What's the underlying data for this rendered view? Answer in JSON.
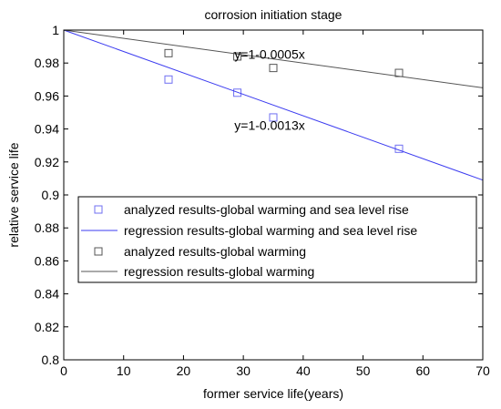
{
  "chart_data": {
    "type": "scatter",
    "title": "corrosion initiation  stage",
    "xlabel": "former service life(years)",
    "ylabel": "relative service life",
    "xlim": [
      0,
      70
    ],
    "ylim": [
      0.8,
      1.0
    ],
    "xticks": [
      "0",
      "10",
      "20",
      "30",
      "40",
      "50",
      "60",
      "70"
    ],
    "yticks": [
      "0.8",
      "0.82",
      "0.84",
      "0.86",
      "0.88",
      "0.9",
      "0.92",
      "0.94",
      "0.96",
      "0.98",
      "1"
    ],
    "grid": false,
    "legend_position": "middle-left",
    "series": [
      {
        "name": "analyzed results-global warming and sea level rise",
        "kind": "points",
        "marker": "square",
        "color": "#6f6ff2",
        "x": [
          17.5,
          29,
          35,
          56
        ],
        "y": [
          0.97,
          0.962,
          0.947,
          0.928
        ]
      },
      {
        "name": "regression results-global warming and sea level rise",
        "kind": "line",
        "color": "#3b3bf0",
        "intercept": 1,
        "slope": -0.0013,
        "x": [
          0,
          70
        ],
        "y": [
          1.0,
          0.909
        ]
      },
      {
        "name": "analyzed results-global warming",
        "kind": "points",
        "marker": "square",
        "color": "#555555",
        "x": [
          17.5,
          29,
          35,
          56
        ],
        "y": [
          0.986,
          0.984,
          0.977,
          0.974
        ]
      },
      {
        "name": "regression results-global warming",
        "kind": "line",
        "color": "#555555",
        "intercept": 1,
        "slope": -0.0005,
        "x": [
          0,
          70
        ],
        "y": [
          1.0,
          0.965
        ]
      }
    ],
    "annotations": [
      {
        "text": "y=1-0.0005x",
        "x": 28.5,
        "y": 0.9825
      },
      {
        "text": "y=1-0.0013x",
        "x": 28.5,
        "y": 0.9395
      }
    ]
  }
}
